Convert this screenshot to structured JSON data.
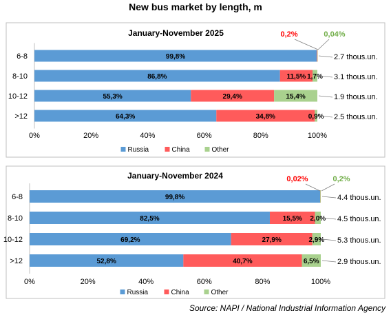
{
  "title": "New bus market by length, m",
  "source": "Source: NAPI / National Industrial Information Agency",
  "colors": {
    "russia": "#5b9bd5",
    "china": "#ff5b5b",
    "other": "#a9d18e",
    "red_label": "#ff0000",
    "green_label": "#70ad47"
  },
  "chart_data": [
    {
      "type": "bar",
      "orientation": "horizontal",
      "stacked": true,
      "title": "January-November 2025",
      "categories": [
        "6-8",
        "8-10",
        "10-12",
        ">12"
      ],
      "series": [
        {
          "name": "Russia",
          "values": [
            99.8,
            86.8,
            55.3,
            64.3
          ],
          "labels": [
            "99,8%",
            "86,8%",
            "55,3%",
            "64,3%"
          ]
        },
        {
          "name": "China",
          "values": [
            0.2,
            11.5,
            29.4,
            34.8
          ],
          "labels": [
            "0,2%",
            "11,5%",
            "29,4%",
            "34,8%"
          ]
        },
        {
          "name": "Other",
          "values": [
            0.04,
            1.7,
            15.4,
            0.9
          ],
          "labels": [
            "0,04%",
            "1,7%",
            "15,4%",
            "0,9%"
          ]
        }
      ],
      "totals": [
        "2.7 thous.un.",
        "3.1 thous.un.",
        "1.9 thous.un.",
        "2.5 thous.un."
      ],
      "xticks": [
        "0%",
        "20%",
        "40%",
        "60%",
        "80%",
        "100%"
      ],
      "xlim": [
        0,
        100
      ],
      "legend": "bottom"
    },
    {
      "type": "bar",
      "orientation": "horizontal",
      "stacked": true,
      "title": "January-November 2024",
      "categories": [
        "6-8",
        "8-10",
        "10-12",
        ">12"
      ],
      "series": [
        {
          "name": "Russia",
          "values": [
            99.8,
            82.5,
            69.2,
            52.8
          ],
          "labels": [
            "99,8%",
            "82,5%",
            "69,2%",
            "52,8%"
          ]
        },
        {
          "name": "China",
          "values": [
            0.02,
            15.5,
            27.9,
            40.7
          ],
          "labels": [
            "0,02%",
            "15,5%",
            "27,9%",
            "40,7%"
          ]
        },
        {
          "name": "Other",
          "values": [
            0.2,
            2.0,
            2.9,
            6.5
          ],
          "labels": [
            "0,2%",
            "2,0%",
            "2,9%",
            "6,5%"
          ]
        }
      ],
      "totals": [
        "4.4 thous.un.",
        "4.5 thous.un.",
        "5.3 thous.un.",
        "2.9 thous.un."
      ],
      "xticks": [
        "0%",
        "20%",
        "40%",
        "60%",
        "80%",
        "100%"
      ],
      "xlim": [
        0,
        100
      ],
      "legend": "bottom"
    }
  ]
}
